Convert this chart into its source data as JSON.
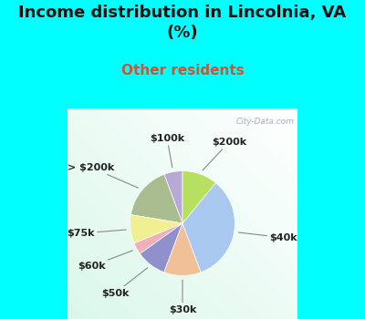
{
  "title": "Income distribution in Lincolnia, VA\n(%)",
  "subtitle": "Other residents",
  "bg_color": "#00FFFF",
  "chart_bg": "#e8f5ee",
  "labels": [
    "$100k",
    "> $200k",
    "$75k",
    "$60k",
    "$50k",
    "$30k",
    "$40k",
    "$200k"
  ],
  "values": [
    5.5,
    16.0,
    8.5,
    3.5,
    9.0,
    11.0,
    32.0,
    10.5
  ],
  "colors": [
    "#b8a8d8",
    "#a8bc90",
    "#f0f090",
    "#f0b0b8",
    "#9090cc",
    "#f0c098",
    "#a8c8f0",
    "#b8e060"
  ],
  "startangle": 90,
  "title_fontsize": 13,
  "subtitle_fontsize": 11,
  "label_fontsize": 8
}
